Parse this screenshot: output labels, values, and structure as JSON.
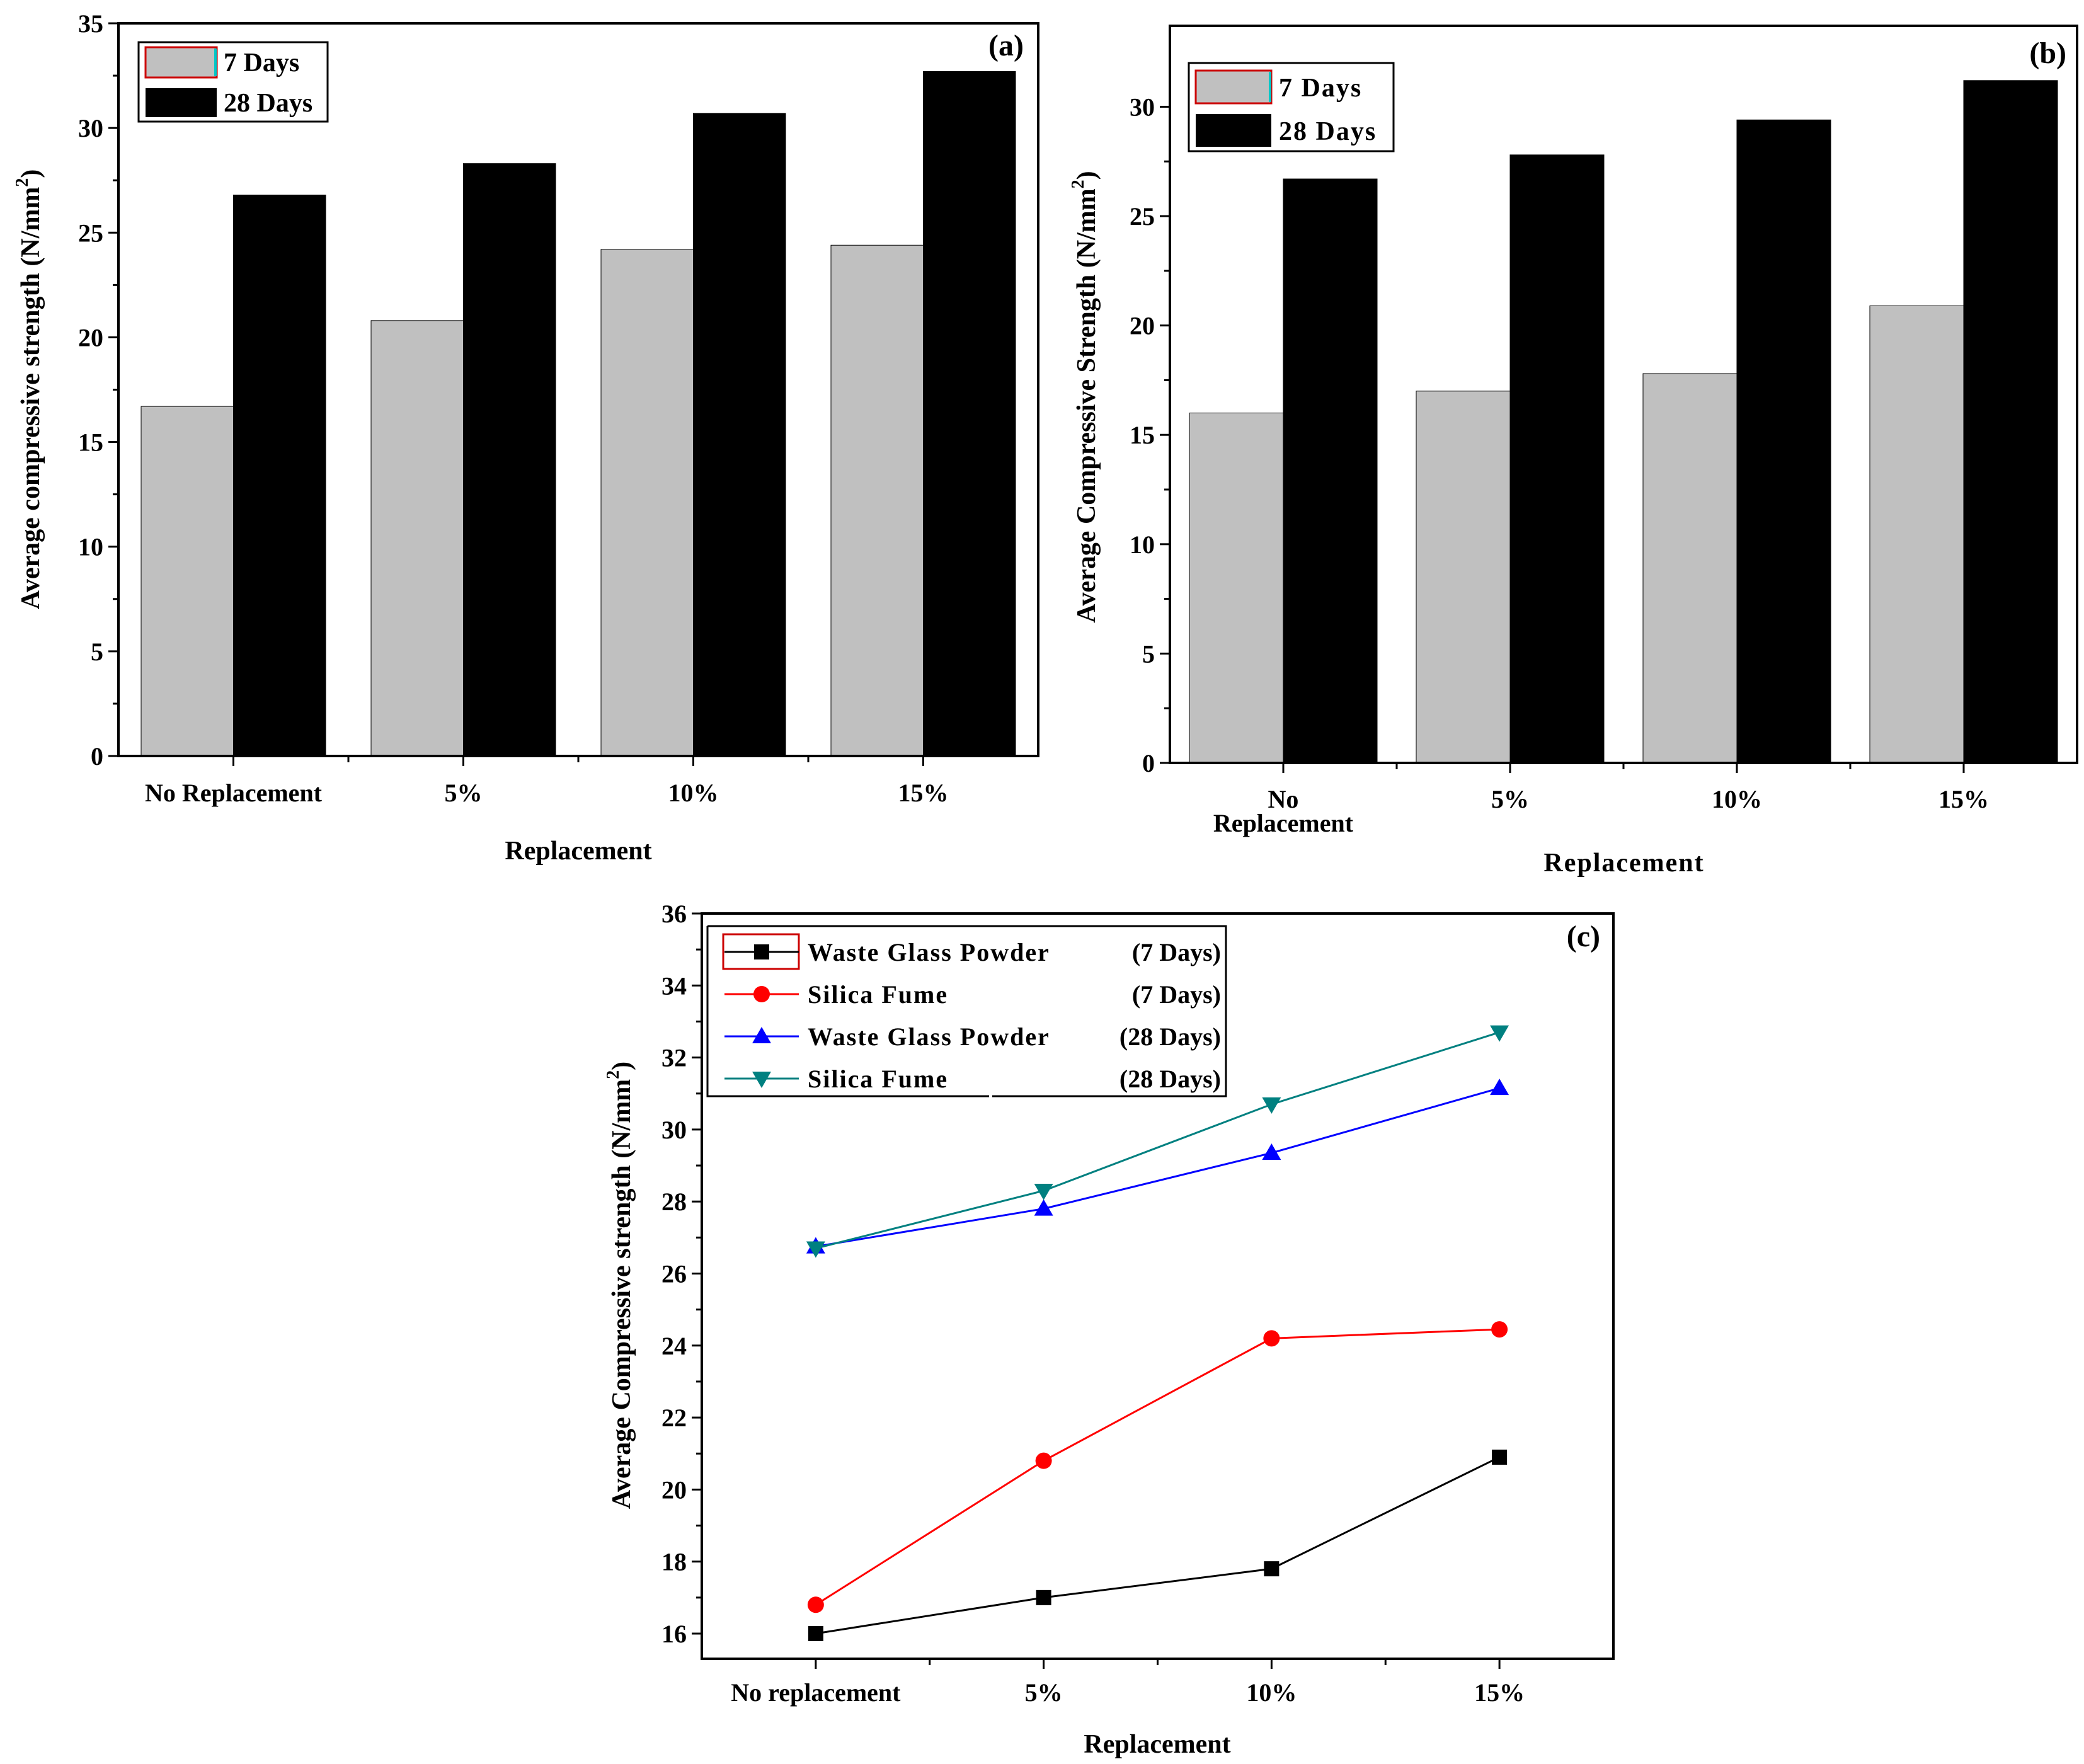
{
  "chart_data": [
    {
      "panel_label": "(a)",
      "type": "bar",
      "categories": [
        [
          "No Replacement"
        ],
        [
          "5%"
        ],
        [
          "10%"
        ],
        [
          "15%"
        ]
      ],
      "series": [
        {
          "name": "7 Days",
          "values": [
            16.7,
            20.8,
            24.2,
            24.4
          ],
          "color": "#c0c0c0"
        },
        {
          "name": "28 Days",
          "values": [
            26.8,
            28.3,
            30.7,
            32.7
          ],
          "color": "#000000"
        }
      ],
      "xlabel": "Replacement",
      "ylabel": "Average compressive strength (N/mm",
      "ylabel_sup": "2",
      "ylabel_close": ")",
      "ylim": [
        0,
        35
      ],
      "yticks": [
        0,
        5,
        10,
        15,
        20,
        25,
        30,
        35
      ],
      "legend_position": "top-left",
      "grid": false
    },
    {
      "panel_label": "(b)",
      "type": "bar",
      "categories": [
        [
          "No",
          "Replacement"
        ],
        [
          "5%"
        ],
        [
          "10%"
        ],
        [
          "15%"
        ]
      ],
      "series": [
        {
          "name": "7 Days",
          "values": [
            16.0,
            17.0,
            17.8,
            20.9
          ],
          "color": "#c0c0c0"
        },
        {
          "name": "28 Days",
          "values": [
            26.7,
            27.8,
            29.4,
            31.2
          ],
          "color": "#000000"
        }
      ],
      "xlabel": "Replacement",
      "ylabel": "Average Compressive Strength (N/mm",
      "ylabel_sup": "2",
      "ylabel_close": ")",
      "ylim": [
        0,
        33.7
      ],
      "yticks": [
        0,
        5,
        10,
        15,
        20,
        25,
        30
      ],
      "legend_position": "top-left",
      "grid": false
    },
    {
      "panel_label": "(c)",
      "type": "line",
      "categories": [
        "No replacement",
        "5%",
        "10%",
        "15%"
      ],
      "series": [
        {
          "name": "Waste Glass Powder",
          "period": "(7 Days)",
          "values": [
            16.0,
            17.0,
            17.8,
            20.9
          ],
          "color": "#000000",
          "marker": "square"
        },
        {
          "name": "Silica Fume",
          "period": "(7 Days)",
          "values": [
            16.8,
            20.8,
            24.2,
            24.45
          ],
          "color": "#ff0000",
          "marker": "circle"
        },
        {
          "name": "Waste Glass Powder",
          "period": "(28 Days)",
          "values": [
            26.75,
            27.8,
            29.35,
            31.15
          ],
          "color": "#0000ff",
          "marker": "triangle-up"
        },
        {
          "name": "Silica Fume",
          "period": "(28 Days)",
          "values": [
            26.7,
            28.3,
            30.7,
            32.7
          ],
          "color": "#008080",
          "marker": "triangle-down"
        }
      ],
      "xlabel": "Replacement",
      "ylabel": "Average Compressive strength (N/mm",
      "ylabel_sup": "2",
      "ylabel_close": ")",
      "ylim": [
        15.3,
        36
      ],
      "yticks": [
        16,
        18,
        20,
        22,
        24,
        26,
        28,
        30,
        32,
        34,
        36
      ],
      "legend_position": "top-left",
      "grid": false
    }
  ]
}
